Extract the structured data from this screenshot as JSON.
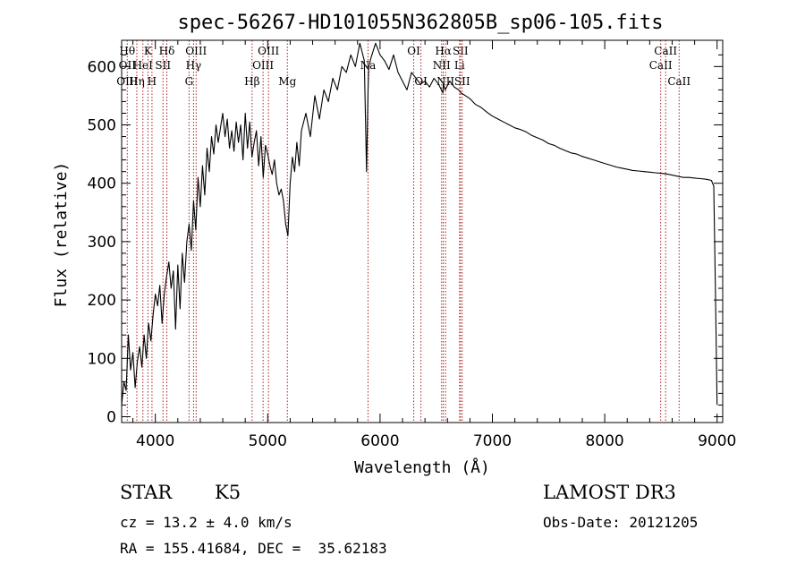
{
  "chart_data": {
    "type": "line",
    "title": "spec-56267-HD101055N362805B_sp06-105.fits",
    "xlabel": "Wavelength (Å)",
    "ylabel": "Flux (relative)",
    "xlim": [
      3700,
      9050
    ],
    "ylim": [
      -10,
      645
    ],
    "xticks": [
      4000,
      5000,
      6000,
      7000,
      8000,
      9000
    ],
    "yticks": [
      0,
      100,
      200,
      300,
      400,
      500,
      600
    ],
    "series": [
      {
        "name": "flux",
        "x": [
          3700,
          3720,
          3740,
          3760,
          3780,
          3800,
          3820,
          3840,
          3860,
          3880,
          3900,
          3920,
          3940,
          3960,
          3980,
          4000,
          4020,
          4040,
          4060,
          4080,
          4100,
          4120,
          4140,
          4160,
          4180,
          4200,
          4220,
          4240,
          4260,
          4280,
          4300,
          4320,
          4340,
          4360,
          4380,
          4400,
          4420,
          4440,
          4460,
          4480,
          4500,
          4520,
          4540,
          4560,
          4580,
          4600,
          4620,
          4640,
          4660,
          4680,
          4700,
          4720,
          4740,
          4760,
          4780,
          4800,
          4820,
          4840,
          4860,
          4880,
          4900,
          4920,
          4940,
          4960,
          4980,
          5000,
          5020,
          5040,
          5060,
          5080,
          5100,
          5120,
          5140,
          5160,
          5180,
          5200,
          5220,
          5240,
          5260,
          5280,
          5300,
          5340,
          5380,
          5420,
          5460,
          5500,
          5540,
          5580,
          5620,
          5660,
          5700,
          5740,
          5780,
          5820,
          5860,
          5880,
          5893,
          5900,
          5920,
          5960,
          6000,
          6040,
          6080,
          6120,
          6160,
          6200,
          6240,
          6280,
          6320,
          6360,
          6400,
          6440,
          6480,
          6520,
          6560,
          6563,
          6580,
          6620,
          6660,
          6700,
          6720,
          6760,
          6800,
          6850,
          6900,
          6950,
          7000,
          7050,
          7100,
          7150,
          7200,
          7250,
          7300,
          7350,
          7400,
          7450,
          7500,
          7550,
          7600,
          7650,
          7700,
          7750,
          7800,
          7850,
          7900,
          7950,
          8000,
          8050,
          8100,
          8150,
          8200,
          8250,
          8300,
          8350,
          8400,
          8450,
          8500,
          8550,
          8600,
          8650,
          8700,
          8750,
          8800,
          8850,
          8900,
          8950,
          8970,
          8980,
          8990,
          9000
        ],
        "y": [
          20,
          60,
          45,
          140,
          80,
          110,
          50,
          95,
          120,
          85,
          140,
          100,
          160,
          130,
          175,
          210,
          190,
          225,
          160,
          210,
          240,
          265,
          220,
          250,
          150,
          260,
          185,
          280,
          230,
          300,
          330,
          285,
          370,
          320,
          410,
          360,
          430,
          380,
          460,
          420,
          480,
          450,
          500,
          470,
          495,
          520,
          480,
          510,
          460,
          490,
          455,
          505,
          470,
          500,
          440,
          520,
          460,
          505,
          445,
          470,
          490,
          430,
          480,
          410,
          465,
          450,
          430,
          415,
          440,
          400,
          380,
          390,
          370,
          330,
          310,
          400,
          445,
          420,
          470,
          430,
          490,
          520,
          480,
          550,
          510,
          560,
          540,
          580,
          560,
          600,
          590,
          620,
          600,
          640,
          610,
          420,
          560,
          600,
          615,
          640,
          620,
          610,
          595,
          620,
          590,
          575,
          560,
          590,
          580,
          570,
          575,
          565,
          580,
          570,
          555,
          570,
          560,
          575,
          565,
          560,
          555,
          550,
          545,
          535,
          530,
          522,
          515,
          510,
          505,
          500,
          495,
          492,
          488,
          482,
          478,
          474,
          468,
          465,
          460,
          456,
          452,
          450,
          446,
          443,
          440,
          437,
          434,
          431,
          428,
          426,
          424,
          422,
          421,
          420,
          419,
          418,
          417,
          416,
          414,
          412,
          410,
          410,
          409,
          408,
          407,
          405,
          395,
          280,
          150,
          20
        ]
      }
    ],
    "line_markers": [
      {
        "wavelength": 3750,
        "labels": [
          "Hθ",
          "OII",
          "OIII"
        ],
        "rows": [
          1,
          2,
          3
        ]
      },
      {
        "wavelength": 3835,
        "labels": [
          "Hη"
        ],
        "rows": [
          3
        ]
      },
      {
        "wavelength": 3889,
        "labels": [
          "HeI"
        ],
        "rows": [
          2
        ]
      },
      {
        "wavelength": 3934,
        "labels": [
          "K"
        ],
        "rows": [
          1
        ]
      },
      {
        "wavelength": 3970,
        "labels": [
          "H"
        ],
        "rows": [
          3
        ]
      },
      {
        "wavelength": 4068,
        "labels": [
          "SII"
        ],
        "rows": [
          2
        ]
      },
      {
        "wavelength": 4102,
        "labels": [
          "Hδ"
        ],
        "rows": [
          1
        ]
      },
      {
        "wavelength": 4300,
        "labels": [
          "G"
        ],
        "rows": [
          3
        ]
      },
      {
        "wavelength": 4340,
        "labels": [
          "Hγ"
        ],
        "rows": [
          2
        ]
      },
      {
        "wavelength": 4363,
        "labels": [
          "OIII"
        ],
        "rows": [
          1
        ]
      },
      {
        "wavelength": 4861,
        "labels": [
          "Hβ"
        ],
        "rows": [
          3
        ]
      },
      {
        "wavelength": 4959,
        "labels": [
          "OIII"
        ],
        "rows": [
          2
        ]
      },
      {
        "wavelength": 5007,
        "labels": [
          "OIII"
        ],
        "rows": [
          1
        ]
      },
      {
        "wavelength": 5175,
        "labels": [
          "Mg"
        ],
        "rows": [
          3
        ]
      },
      {
        "wavelength": 5893,
        "labels": [
          "Na"
        ],
        "rows": [
          2
        ]
      },
      {
        "wavelength": 6300,
        "labels": [
          "OI"
        ],
        "rows": [
          1
        ]
      },
      {
        "wavelength": 6364,
        "labels": [
          "OI"
        ],
        "rows": [
          3
        ]
      },
      {
        "wavelength": 6548,
        "labels": [
          "NII"
        ],
        "rows": [
          2
        ]
      },
      {
        "wavelength": 6563,
        "labels": [
          "Hα"
        ],
        "rows": [
          1
        ]
      },
      {
        "wavelength": 6583,
        "labels": [
          "NII"
        ],
        "rows": [
          3
        ]
      },
      {
        "wavelength": 6708,
        "labels": [
          "Li"
        ],
        "rows": [
          2
        ]
      },
      {
        "wavelength": 6716,
        "labels": [
          "SII"
        ],
        "rows": [
          1
        ]
      },
      {
        "wavelength": 6731,
        "labels": [
          "SII"
        ],
        "rows": [
          3
        ]
      },
      {
        "wavelength": 8498,
        "labels": [
          "CaII"
        ],
        "rows": [
          2
        ]
      },
      {
        "wavelength": 8542,
        "labels": [
          "CaII"
        ],
        "rows": [
          1
        ]
      },
      {
        "wavelength": 8662,
        "labels": [
          "CaII"
        ],
        "rows": [
          3
        ]
      }
    ]
  },
  "info": {
    "class": "STAR",
    "subclass": "K5",
    "cz": "cz = 13.2 ± 4.0 km/s",
    "coords": "RA = 155.41684, DEC =  35.62183",
    "survey": "LAMOST DR3",
    "obs_date": "Obs-Date: 20121205"
  },
  "colors": {
    "line_marker": "#aa2222",
    "spectrum": "#000000"
  }
}
